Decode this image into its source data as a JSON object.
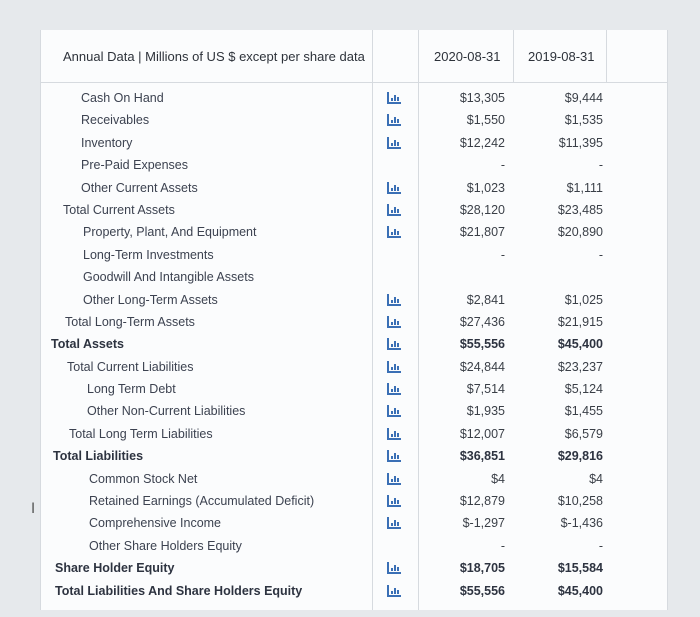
{
  "header": {
    "title": "Annual Data | Millions of US $ except per share data",
    "col1": "2020-08-31",
    "col2": "2019-08-31"
  },
  "rows": [
    {
      "label": "Cash On Hand",
      "indent": 40,
      "bold": false,
      "chart": true,
      "v1": "$13,305",
      "v2": "$9,444"
    },
    {
      "label": "Receivables",
      "indent": 40,
      "bold": false,
      "chart": true,
      "v1": "$1,550",
      "v2": "$1,535"
    },
    {
      "label": "Inventory",
      "indent": 40,
      "bold": false,
      "chart": true,
      "v1": "$12,242",
      "v2": "$11,395"
    },
    {
      "label": "Pre-Paid Expenses",
      "indent": 40,
      "bold": false,
      "chart": false,
      "v1": "-",
      "v2": "-"
    },
    {
      "label": "Other Current Assets",
      "indent": 40,
      "bold": false,
      "chart": true,
      "v1": "$1,023",
      "v2": "$1,111"
    },
    {
      "label": "Total Current Assets",
      "indent": 22,
      "bold": false,
      "chart": true,
      "v1": "$28,120",
      "v2": "$23,485"
    },
    {
      "label": "Property, Plant, And Equipment",
      "indent": 42,
      "bold": false,
      "chart": true,
      "v1": "$21,807",
      "v2": "$20,890"
    },
    {
      "label": "Long-Term Investments",
      "indent": 42,
      "bold": false,
      "chart": false,
      "v1": "-",
      "v2": "-"
    },
    {
      "label": "Goodwill And Intangible Assets",
      "indent": 42,
      "bold": false,
      "chart": false,
      "v1": "",
      "v2": ""
    },
    {
      "label": "Other Long-Term Assets",
      "indent": 42,
      "bold": false,
      "chart": true,
      "v1": "$2,841",
      "v2": "$1,025"
    },
    {
      "label": "Total Long-Term Assets",
      "indent": 24,
      "bold": false,
      "chart": true,
      "v1": "$27,436",
      "v2": "$21,915"
    },
    {
      "label": "Total Assets",
      "indent": 10,
      "bold": true,
      "chart": true,
      "v1": "$55,556",
      "v2": "$45,400"
    },
    {
      "label": "Total Current Liabilities",
      "indent": 26,
      "bold": false,
      "chart": true,
      "v1": "$24,844",
      "v2": "$23,237"
    },
    {
      "label": "Long Term Debt",
      "indent": 46,
      "bold": false,
      "chart": true,
      "v1": "$7,514",
      "v2": "$5,124"
    },
    {
      "label": "Other Non-Current Liabilities",
      "indent": 46,
      "bold": false,
      "chart": true,
      "v1": "$1,935",
      "v2": "$1,455"
    },
    {
      "label": "Total Long Term Liabilities",
      "indent": 28,
      "bold": false,
      "chart": true,
      "v1": "$12,007",
      "v2": "$6,579"
    },
    {
      "label": "Total Liabilities",
      "indent": 12,
      "bold": true,
      "chart": true,
      "v1": "$36,851",
      "v2": "$29,816"
    },
    {
      "label": "Common Stock Net",
      "indent": 48,
      "bold": false,
      "chart": true,
      "v1": "$4",
      "v2": "$4"
    },
    {
      "label": "Retained Earnings (Accumulated Deficit)",
      "indent": 48,
      "bold": false,
      "chart": true,
      "v1": "$12,879",
      "v2": "$10,258"
    },
    {
      "label": "Comprehensive Income",
      "indent": 48,
      "bold": false,
      "chart": true,
      "v1": "$-1,297",
      "v2": "$-1,436"
    },
    {
      "label": "Other Share Holders Equity",
      "indent": 48,
      "bold": false,
      "chart": false,
      "v1": "-",
      "v2": "-"
    },
    {
      "label": "Share Holder Equity",
      "indent": 14,
      "bold": true,
      "chart": true,
      "v1": "$18,705",
      "v2": "$15,584"
    },
    {
      "label": "Total Liabilities And Share Holders Equity",
      "indent": 14,
      "bold": true,
      "chart": true,
      "v1": "$55,556",
      "v2": "$45,400"
    }
  ],
  "icons": {
    "chart": "bar-chart-icon",
    "cursor": "text-cursor-icon"
  }
}
